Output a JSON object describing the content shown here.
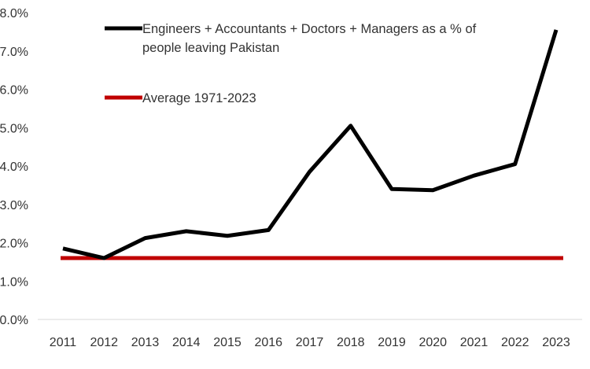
{
  "chart_data": {
    "type": "line",
    "categories": [
      "2011",
      "2012",
      "2013",
      "2014",
      "2015",
      "2016",
      "2017",
      "2018",
      "2019",
      "2020",
      "2021",
      "2022",
      "2023"
    ],
    "series": [
      {
        "name": "Engineers + Accountants + Doctors + Managers as a % of people leaving Pakistan",
        "values": [
          1.85,
          1.6,
          2.12,
          2.3,
          2.18,
          2.33,
          3.85,
          5.05,
          3.4,
          3.37,
          3.75,
          4.05,
          7.55
        ],
        "color": "#000000"
      },
      {
        "name": "Average 1971-2023",
        "values": [
          1.6,
          1.6,
          1.6,
          1.6,
          1.6,
          1.6,
          1.6,
          1.6,
          1.6,
          1.6,
          1.6,
          1.6,
          1.6
        ],
        "color": "#c00000"
      }
    ],
    "ylim": [
      0,
      8
    ],
    "yticks": [
      "0.0%",
      "1.0%",
      "2.0%",
      "3.0%",
      "4.0%",
      "5.0%",
      "6.0%",
      "7.0%",
      "8.0%"
    ],
    "legend": {
      "line1": "Engineers + Accountants + Doctors + Managers as a % of",
      "line2": "people leaving Pakistan",
      "avg": "Average 1971-2023"
    },
    "grid": false,
    "legend_position": "top"
  }
}
